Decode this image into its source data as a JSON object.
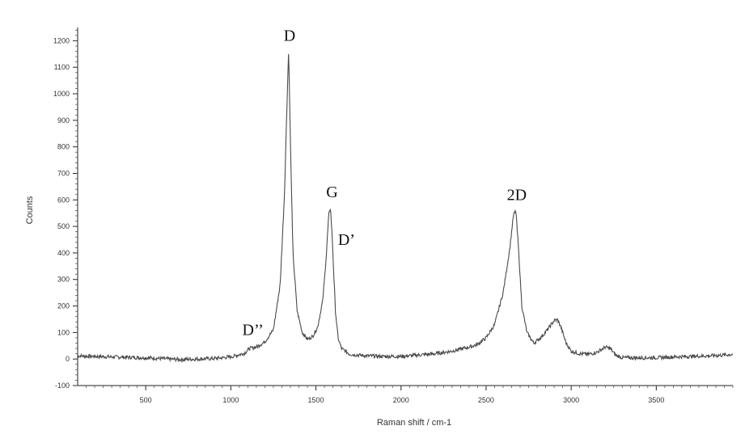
{
  "chart_data": {
    "type": "line",
    "xlabel": "Raman shift / cm-1",
    "ylabel": "Counts",
    "xlim": [
      100,
      3950
    ],
    "ylim": [
      -100,
      1250
    ],
    "x_ticks": [
      500,
      1000,
      1500,
      2000,
      2500,
      3000,
      3500
    ],
    "y_ticks": [
      -100,
      0,
      100,
      200,
      300,
      400,
      500,
      600,
      700,
      800,
      900,
      1000,
      1100,
      1200
    ],
    "x_tick_labels": [
      "500",
      "1000",
      "1500",
      "2000",
      "2500",
      "3000",
      "3500"
    ],
    "y_tick_labels": [
      "-100",
      "0",
      "100",
      "200",
      "300",
      "400",
      "500",
      "600",
      "700",
      "800",
      "900",
      "1000",
      "1100",
      "1200"
    ],
    "grid": false,
    "series": [
      {
        "x": [
          100,
          300,
          500,
          700,
          900,
          1000,
          1080,
          1110,
          1150,
          1200,
          1250,
          1290,
          1315,
          1330,
          1340,
          1350,
          1365,
          1390,
          1420,
          1450,
          1480,
          1510,
          1540,
          1560,
          1575,
          1585,
          1595,
          1605,
          1615,
          1630,
          1650,
          1700,
          1800,
          1900,
          2000,
          2100,
          2200,
          2300,
          2400,
          2450,
          2500,
          2550,
          2600,
          2640,
          2660,
          2675,
          2690,
          2710,
          2740,
          2780,
          2820,
          2860,
          2900,
          2920,
          2940,
          2970,
          3000,
          3050,
          3100,
          3150,
          3200,
          3230,
          3260,
          3300,
          3400,
          3500,
          3600,
          3700,
          3800,
          3900,
          3950
        ],
        "y": [
          12,
          8,
          5,
          -2,
          2,
          8,
          22,
          40,
          45,
          65,
          110,
          280,
          620,
          960,
          1170,
          820,
          400,
          180,
          100,
          75,
          85,
          120,
          220,
          380,
          540,
          570,
          470,
          320,
          180,
          80,
          40,
          18,
          12,
          10,
          10,
          15,
          20,
          30,
          45,
          55,
          80,
          130,
          250,
          420,
          540,
          560,
          420,
          200,
          100,
          60,
          80,
          110,
          145,
          148,
          120,
          60,
          30,
          20,
          18,
          25,
          45,
          40,
          15,
          5,
          5,
          5,
          8,
          10,
          12,
          15,
          18
        ]
      }
    ],
    "annotations": [
      {
        "text": "D",
        "x": 1345,
        "y": 1200
      },
      {
        "text": "G",
        "x": 1595,
        "y": 610
      },
      {
        "text": "D’",
        "x": 1680,
        "y": 430
      },
      {
        "text": "2D",
        "x": 2680,
        "y": 600
      },
      {
        "text": "D’’",
        "x": 1130,
        "y": 90
      }
    ],
    "colors": {
      "line": "#4a4a4a",
      "axis": "#222222"
    }
  }
}
